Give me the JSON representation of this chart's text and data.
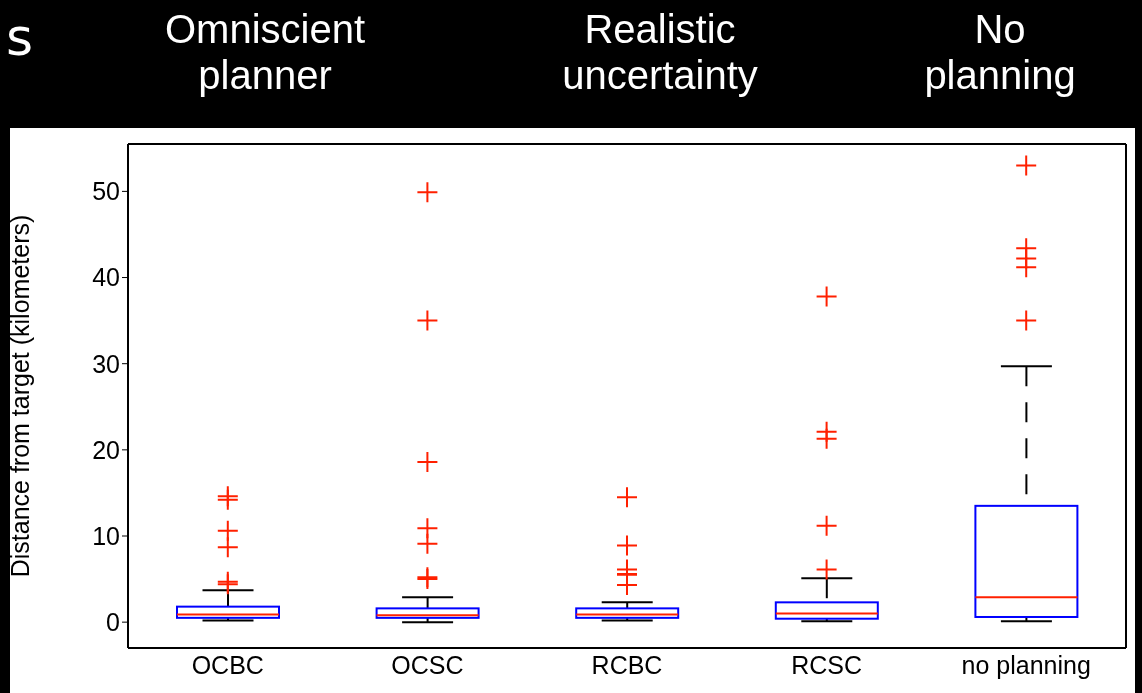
{
  "chart_data": {
    "type": "box",
    "ylabel": "Distance from target (kilometers)",
    "categories": [
      "OCBC",
      "OCSC",
      "RCBC",
      "RCSC",
      "no planning"
    ],
    "color": "#0000ff",
    "ylim": [
      -3,
      55.5
    ],
    "yticks": [
      0,
      10,
      20,
      30,
      40,
      50
    ],
    "boxes": [
      {
        "low": 0.2,
        "q1": 0.5,
        "median": 0.9,
        "q3": 1.8,
        "high": 3.7,
        "outliers": [
          14.6,
          14.2,
          10.6,
          8.7,
          4.7,
          4.4
        ]
      },
      {
        "low": 0.0,
        "q1": 0.5,
        "median": 0.8,
        "q3": 1.6,
        "high": 2.9,
        "outliers": [
          49.9,
          35.0,
          18.6,
          10.9,
          9.1,
          5.2,
          5.0
        ]
      },
      {
        "low": 0.2,
        "q1": 0.5,
        "median": 0.9,
        "q3": 1.6,
        "high": 2.3,
        "outliers": [
          14.5,
          8.9,
          6.1,
          5.6,
          5.5,
          4.3
        ]
      },
      {
        "low": 0.1,
        "q1": 0.4,
        "median": 1.0,
        "q3": 2.3,
        "high": 5.1,
        "outliers": [
          37.8,
          22.1,
          21.3,
          11.2,
          6.1
        ]
      },
      {
        "low": 0.1,
        "q1": 0.6,
        "median": 2.9,
        "q3": 13.5,
        "high": 29.7,
        "outliers": [
          53.0,
          43.4,
          42.2,
          41.2,
          35.0
        ]
      }
    ],
    "annotations": [
      "s",
      "Omniscient\nplanner",
      "Realistic\nuncertainty",
      "No\nplanning"
    ]
  }
}
